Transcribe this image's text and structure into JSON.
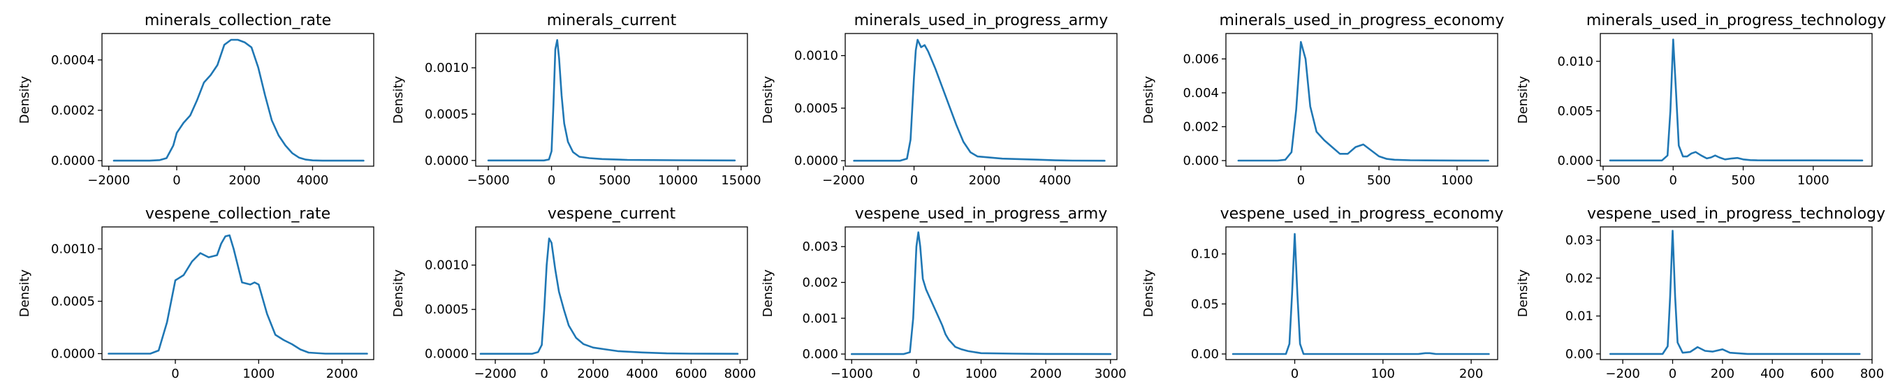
{
  "chart_data": [
    {
      "type": "line",
      "title": "minerals_collection_rate",
      "xlabel": "",
      "ylabel": "Density",
      "xlim": [
        -2200,
        5800
      ],
      "ylim": [
        -2.2e-05,
        0.000505
      ],
      "xticks": [
        -2000,
        0,
        2000,
        4000
      ],
      "yticks": [
        0.0,
        0.0002,
        0.0004
      ],
      "ytick_labels": [
        "0.0000",
        "0.0002",
        "0.0004"
      ],
      "xtick_labels": [
        "−2000",
        "0",
        "2000",
        "4000"
      ],
      "grid": false,
      "legend": "none",
      "series": [
        {
          "x": [
            -1850,
            -800,
            -500,
            -300,
            -100,
            0,
            200,
            400,
            600,
            800,
            1000,
            1200,
            1400,
            1600,
            1800,
            2000,
            2200,
            2400,
            2600,
            2800,
            3000,
            3200,
            3400,
            3600,
            3800,
            4000,
            4300,
            5500
          ],
          "y": [
            0,
            0,
            2e-06,
            1e-05,
            6e-05,
            0.00011,
            0.00015,
            0.00018,
            0.00024,
            0.00031,
            0.00034,
            0.00038,
            0.00046,
            0.00048,
            0.00048,
            0.00047,
            0.00045,
            0.00037,
            0.00026,
            0.00016,
            0.0001,
            6e-05,
            3e-05,
            1.2e-05,
            4e-06,
            1e-06,
            0,
            0
          ]
        }
      ]
    },
    {
      "type": "line",
      "title": "minerals_current",
      "xlabel": "",
      "ylabel": "Density",
      "xlim": [
        -6000,
        15500
      ],
      "ylim": [
        -6.2e-05,
        0.00137
      ],
      "xticks": [
        -5000,
        0,
        5000,
        10000,
        15000
      ],
      "yticks": [
        0.0,
        0.0005,
        0.001
      ],
      "ytick_labels": [
        "0.0000",
        "0.0005",
        "0.0010"
      ],
      "xtick_labels": [
        "−5000",
        "0",
        "5000",
        "10000",
        "15000"
      ],
      "grid": false,
      "legend": "none",
      "series": [
        {
          "x": [
            -5000,
            -600,
            -200,
            0,
            150,
            300,
            450,
            600,
            800,
            1000,
            1300,
            1700,
            2200,
            3000,
            4000,
            6000,
            10000,
            14500
          ],
          "y": [
            0,
            0,
            1e-05,
            0.0001,
            0.0006,
            0.0012,
            0.0013,
            0.0011,
            0.0007,
            0.0004,
            0.0002,
            9e-05,
            4e-05,
            2.5e-05,
            1.5e-05,
            6e-06,
            2e-06,
            0
          ]
        }
      ]
    },
    {
      "type": "line",
      "title": "minerals_used_in_progress_army",
      "xlabel": "",
      "ylabel": "Density",
      "xlim": [
        -1950,
        5750
      ],
      "ylim": [
        -5.2e-05,
        0.00121
      ],
      "xticks": [
        -2000,
        0,
        2000,
        4000
      ],
      "yticks": [
        0.0,
        0.0005,
        0.001
      ],
      "ytick_labels": [
        "0.0000",
        "0.0005",
        "0.0010"
      ],
      "xtick_labels": [
        "−2000",
        "0",
        "2000",
        "4000"
      ],
      "grid": false,
      "legend": "none",
      "series": [
        {
          "x": [
            -1700,
            -400,
            -200,
            -100,
            0,
            50,
            100,
            200,
            300,
            400,
            600,
            800,
            1000,
            1200,
            1400,
            1600,
            1800,
            2000,
            2500,
            3000,
            3500,
            4000,
            4500,
            5400
          ],
          "y": [
            0,
            0,
            2e-05,
            0.0002,
            0.0008,
            0.00105,
            0.00115,
            0.00108,
            0.0011,
            0.00104,
            0.00088,
            0.0007,
            0.00052,
            0.00034,
            0.00018,
            8e-05,
            4e-05,
            3.5e-05,
            2e-05,
            1.5e-05,
            1e-05,
            4e-06,
            1e-06,
            0
          ]
        }
      ]
    },
    {
      "type": "line",
      "title": "minerals_used_in_progress_economy",
      "xlabel": "",
      "ylabel": "Density",
      "xlim": [
        -480,
        1260
      ],
      "ylim": [
        -0.00033,
        0.0075
      ],
      "xticks": [
        0,
        500,
        1000
      ],
      "yticks": [
        0.0,
        0.002,
        0.004,
        0.006
      ],
      "ytick_labels": [
        "0.000",
        "0.002",
        "0.004",
        "0.006"
      ],
      "xtick_labels": [
        "0",
        "500",
        "1000"
      ],
      "grid": false,
      "legend": "none",
      "series": [
        {
          "x": [
            -400,
            -150,
            -100,
            -60,
            -30,
            0,
            30,
            60,
            100,
            150,
            200,
            250,
            300,
            350,
            400,
            450,
            500,
            550,
            600,
            700,
            800,
            1000,
            1200
          ],
          "y": [
            0,
            0,
            5e-05,
            0.0005,
            0.003,
            0.007,
            0.006,
            0.0032,
            0.0017,
            0.0012,
            0.0008,
            0.0004,
            0.0004,
            0.0008,
            0.00095,
            0.0006,
            0.00025,
            0.0001,
            5e-05,
            2e-05,
            1e-05,
            3e-06,
            0
          ]
        }
      ]
    },
    {
      "type": "line",
      "title": "minerals_used_in_progress_technology",
      "xlabel": "",
      "ylabel": "Density",
      "xlim": [
        -520,
        1420
      ],
      "ylim": [
        -0.00058,
        0.0128
      ],
      "xticks": [
        -500,
        0,
        500,
        1000
      ],
      "yticks": [
        0.0,
        0.005,
        0.01
      ],
      "ytick_labels": [
        "0.000",
        "0.005",
        "0.010"
      ],
      "xtick_labels": [
        "−500",
        "0",
        "500",
        "1000"
      ],
      "grid": false,
      "legend": "none",
      "series": [
        {
          "x": [
            -450,
            -80,
            -40,
            -20,
            0,
            20,
            40,
            70,
            100,
            130,
            160,
            200,
            240,
            270,
            300,
            330,
            370,
            420,
            460,
            500,
            550,
            600,
            800,
            1000,
            1350
          ],
          "y": [
            0,
            0,
            0.0005,
            0.005,
            0.0122,
            0.007,
            0.0015,
            0.0004,
            0.0004,
            0.0007,
            0.00085,
            0.0005,
            0.0002,
            0.0003,
            0.0005,
            0.0003,
            0.0001,
            0.0002,
            0.00025,
            0.0001,
            3e-05,
            1e-05,
            3e-06,
            1e-06,
            0
          ]
        }
      ]
    },
    {
      "type": "line",
      "title": "vespene_collection_rate",
      "xlabel": "",
      "ylabel": "Density",
      "xlim": [
        -880,
        2380
      ],
      "ylim": [
        -5.7e-05,
        0.00121
      ],
      "xticks": [
        0,
        1000,
        2000
      ],
      "yticks": [
        0.0,
        0.0005,
        0.001
      ],
      "ytick_labels": [
        "0.0000",
        "0.0005",
        "0.0010"
      ],
      "xtick_labels": [
        "0",
        "1000",
        "2000"
      ],
      "grid": false,
      "legend": "none",
      "series": [
        {
          "x": [
            -800,
            -300,
            -200,
            -100,
            0,
            100,
            200,
            300,
            400,
            500,
            550,
            600,
            650,
            700,
            800,
            900,
            950,
            1000,
            1100,
            1200,
            1300,
            1400,
            1500,
            1600,
            1800,
            2300
          ],
          "y": [
            0,
            0,
            3e-05,
            0.0003,
            0.0007,
            0.00075,
            0.00088,
            0.00096,
            0.00092,
            0.00094,
            0.00105,
            0.00112,
            0.00113,
            0.001,
            0.00068,
            0.00066,
            0.00068,
            0.00066,
            0.00038,
            0.00018,
            0.00013,
            9e-05,
            4e-05,
            1e-05,
            0,
            0
          ]
        }
      ]
    },
    {
      "type": "line",
      "title": "vespene_current",
      "xlabel": "",
      "ylabel": "Density",
      "xlim": [
        -2800,
        8300
      ],
      "ylim": [
        -6.5e-05,
        0.00143
      ],
      "xticks": [
        -2000,
        0,
        2000,
        4000,
        6000,
        8000
      ],
      "yticks": [
        0.0,
        0.0005,
        0.001
      ],
      "ytick_labels": [
        "0.0000",
        "0.0005",
        "0.0010"
      ],
      "xtick_labels": [
        "−2000",
        "0",
        "2000",
        "4000",
        "6000",
        "8000"
      ],
      "grid": false,
      "legend": "none",
      "series": [
        {
          "x": [
            -2600,
            -500,
            -250,
            -100,
            0,
            100,
            200,
            300,
            450,
            600,
            800,
            1000,
            1300,
            1600,
            2000,
            2500,
            3000,
            4000,
            5000,
            6000,
            7900
          ],
          "y": [
            0,
            0,
            2e-05,
            0.0001,
            0.0005,
            0.001,
            0.0013,
            0.00125,
            0.00095,
            0.0007,
            0.0005,
            0.00032,
            0.00018,
            0.00011,
            7e-05,
            5e-05,
            3e-05,
            1.5e-05,
            5e-06,
            2e-06,
            0
          ]
        }
      ]
    },
    {
      "type": "line",
      "title": "vespene_used_in_progress_army",
      "xlabel": "",
      "ylabel": "Density",
      "xlim": [
        -1100,
        3100
      ],
      "ylim": [
        -0.000155,
        0.00355
      ],
      "xticks": [
        -1000,
        0,
        1000,
        2000,
        3000
      ],
      "yticks": [
        0.0,
        0.001,
        0.002,
        0.003
      ],
      "ytick_labels": [
        "0.000",
        "0.001",
        "0.002",
        "0.003"
      ],
      "xtick_labels": [
        "−1000",
        "0",
        "1000",
        "2000",
        "3000"
      ],
      "grid": false,
      "legend": "none",
      "series": [
        {
          "x": [
            -1000,
            -200,
            -100,
            -50,
            0,
            30,
            60,
            100,
            150,
            200,
            300,
            400,
            450,
            500,
            600,
            700,
            800,
            1000,
            1500,
            2000,
            3000
          ],
          "y": [
            0,
            0,
            5e-05,
            0.001,
            0.003,
            0.0034,
            0.003,
            0.0021,
            0.0018,
            0.0016,
            0.0012,
            0.0008,
            0.00055,
            0.0004,
            0.0002,
            0.00013,
            8e-05,
            2.5e-05,
            1e-05,
            3e-06,
            0
          ]
        }
      ]
    },
    {
      "type": "line",
      "title": "vespene_used_in_progress_economy",
      "xlabel": "",
      "ylabel": "Density",
      "xlim": [
        -78,
        230
      ],
      "ylim": [
        -0.0056,
        0.127
      ],
      "xticks": [
        0,
        100,
        200
      ],
      "yticks": [
        0.0,
        0.05,
        0.1
      ],
      "ytick_labels": [
        "0.00",
        "0.05",
        "0.10"
      ],
      "xtick_labels": [
        "0",
        "100",
        "200"
      ],
      "grid": false,
      "legend": "none",
      "series": [
        {
          "x": [
            -70,
            -10,
            -6,
            -3,
            0,
            3,
            6,
            10,
            30,
            140,
            148,
            153,
            160,
            220
          ],
          "y": [
            0,
            0,
            0.01,
            0.06,
            0.12,
            0.06,
            0.01,
            0,
            0,
            0,
            0.0008,
            0.0008,
            0,
            0
          ]
        }
      ]
    },
    {
      "type": "line",
      "title": "vespene_used_in_progress_technology",
      "xlabel": "",
      "ylabel": "Density",
      "xlim": [
        -290,
        800
      ],
      "ylim": [
        -0.0015,
        0.0335
      ],
      "xticks": [
        -200,
        0,
        200,
        400,
        600,
        800
      ],
      "yticks": [
        0.0,
        0.01,
        0.02,
        0.03
      ],
      "ytick_labels": [
        "0.00",
        "0.01",
        "0.02",
        "0.03"
      ],
      "xtick_labels": [
        "−200",
        "0",
        "200",
        "400",
        "600",
        "800"
      ],
      "grid": false,
      "legend": "none",
      "series": [
        {
          "x": [
            -250,
            -40,
            -20,
            -10,
            0,
            10,
            20,
            40,
            70,
            100,
            130,
            160,
            200,
            230,
            300,
            750
          ],
          "y": [
            0,
            0,
            0.002,
            0.015,
            0.0325,
            0.015,
            0.003,
            0.0003,
            0.0005,
            0.0018,
            0.0008,
            0.0006,
            0.0012,
            0.0003,
            0,
            0
          ]
        }
      ]
    }
  ]
}
